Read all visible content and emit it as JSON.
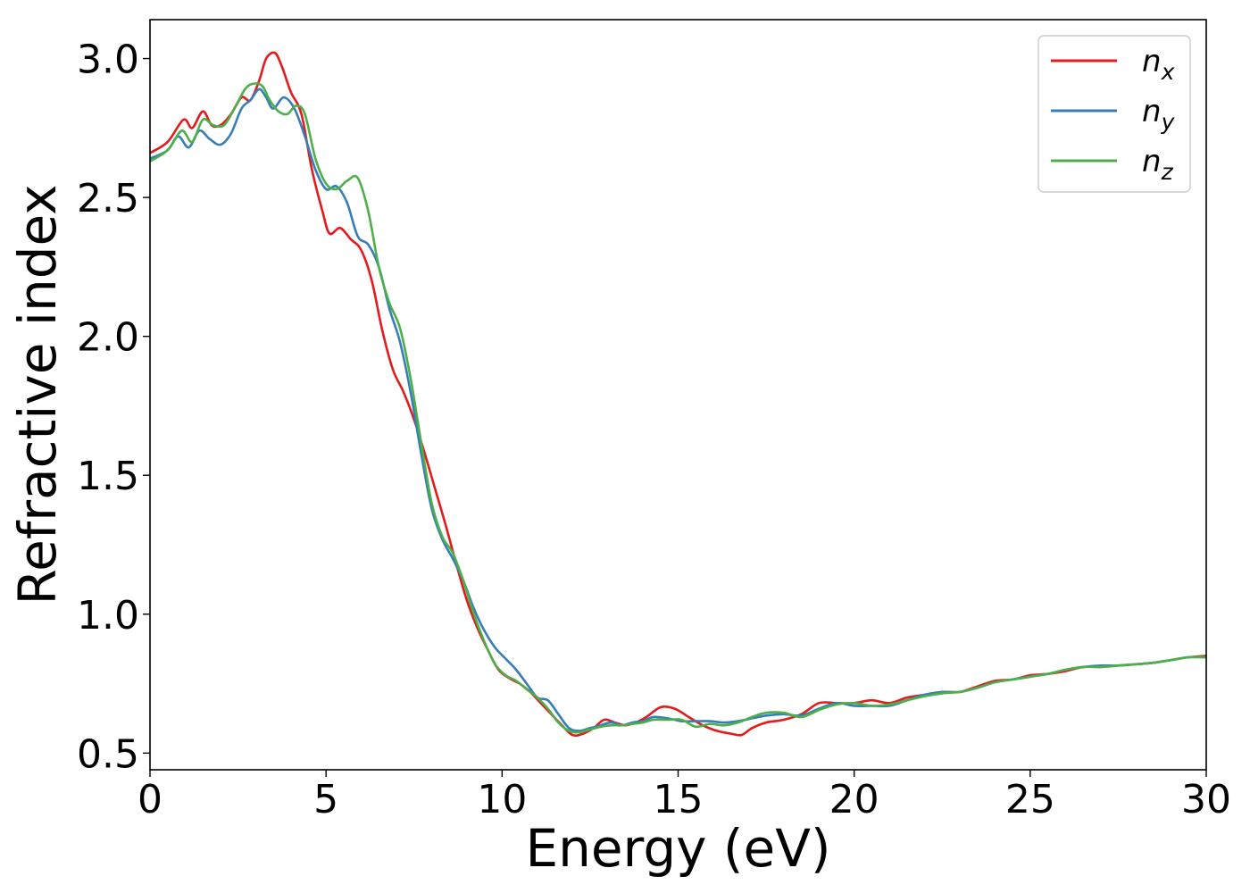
{
  "chart_data": {
    "type": "line",
    "xlabel": "Energy (eV)",
    "ylabel": "Refractive index",
    "xlim": [
      0,
      30
    ],
    "ylim": [
      0.44,
      3.14
    ],
    "xticks": [
      0,
      5,
      10,
      15,
      20,
      25,
      30
    ],
    "yticks": [
      0.5,
      1.0,
      1.5,
      2.0,
      2.5,
      3.0
    ],
    "xtick_labels": [
      "0",
      "5",
      "10",
      "15",
      "20",
      "25",
      "30"
    ],
    "ytick_labels": [
      "0.5",
      "1.0",
      "1.5",
      "2.0",
      "2.5",
      "3.0"
    ],
    "grid": false,
    "legend_position": "top-right",
    "series": [
      {
        "name": "n_x",
        "label_base": "n",
        "label_sub": "x",
        "color": "#e41a1c",
        "x": [
          0,
          0.5,
          0.95,
          1.2,
          1.5,
          1.75,
          2.0,
          2.3,
          2.6,
          2.85,
          3.1,
          3.3,
          3.55,
          3.75,
          4.0,
          4.3,
          4.6,
          4.9,
          5.1,
          5.4,
          5.7,
          6.0,
          6.3,
          6.6,
          6.9,
          7.2,
          7.5,
          7.8,
          8.1,
          8.4,
          8.7,
          9.0,
          9.3,
          9.6,
          9.9,
          10.2,
          10.5,
          10.8,
          11.1,
          11.4,
          11.7,
          12.0,
          12.3,
          12.6,
          12.9,
          13.2,
          13.5,
          13.8,
          14.1,
          14.5,
          14.9,
          15.3,
          15.7,
          16.1,
          16.5,
          16.8,
          17.1,
          17.5,
          18.0,
          18.5,
          19.0,
          19.5,
          20.0,
          20.5,
          21.0,
          21.5,
          22.0,
          22.5,
          23.0,
          23.5,
          24.0,
          24.5,
          25.0,
          25.5,
          26.0,
          26.5,
          27.0,
          27.5,
          28.0,
          28.5,
          29.0,
          29.5,
          30.0
        ],
        "values": [
          2.66,
          2.7,
          2.78,
          2.75,
          2.81,
          2.76,
          2.76,
          2.8,
          2.86,
          2.85,
          2.92,
          3.0,
          3.02,
          2.97,
          2.88,
          2.8,
          2.6,
          2.45,
          2.37,
          2.39,
          2.35,
          2.31,
          2.2,
          2.02,
          1.88,
          1.8,
          1.7,
          1.58,
          1.45,
          1.32,
          1.18,
          1.05,
          0.95,
          0.87,
          0.8,
          0.77,
          0.75,
          0.72,
          0.68,
          0.64,
          0.6,
          0.565,
          0.57,
          0.59,
          0.62,
          0.61,
          0.6,
          0.61,
          0.63,
          0.665,
          0.66,
          0.63,
          0.6,
          0.58,
          0.57,
          0.565,
          0.59,
          0.61,
          0.62,
          0.64,
          0.68,
          0.68,
          0.68,
          0.69,
          0.68,
          0.7,
          0.71,
          0.72,
          0.72,
          0.74,
          0.76,
          0.765,
          0.78,
          0.785,
          0.795,
          0.81,
          0.81,
          0.815,
          0.82,
          0.825,
          0.835,
          0.845,
          0.85
        ]
      },
      {
        "name": "n_y",
        "label_base": "n",
        "label_sub": "y",
        "color": "#377eb8",
        "x": [
          0,
          0.5,
          0.8,
          1.1,
          1.4,
          1.7,
          2.0,
          2.3,
          2.6,
          2.85,
          3.1,
          3.3,
          3.5,
          3.8,
          4.1,
          4.4,
          4.7,
          5.0,
          5.3,
          5.6,
          5.9,
          6.2,
          6.5,
          6.8,
          7.1,
          7.4,
          7.7,
          8.0,
          8.3,
          8.6,
          8.9,
          9.2,
          9.5,
          9.8,
          10.1,
          10.4,
          10.7,
          11.0,
          11.3,
          11.6,
          11.9,
          12.2,
          12.5,
          12.8,
          13.1,
          13.4,
          13.7,
          14.0,
          14.3,
          14.7,
          15.1,
          15.5,
          15.9,
          16.3,
          16.7,
          17.1,
          17.5,
          18.0,
          18.5,
          19.0,
          19.5,
          20.0,
          20.5,
          21.0,
          21.5,
          22.0,
          22.5,
          23.0,
          23.5,
          24.0,
          24.5,
          25.0,
          25.5,
          26.0,
          26.5,
          27.0,
          27.5,
          28.0,
          28.5,
          29.0,
          29.5,
          30.0
        ],
        "values": [
          2.64,
          2.67,
          2.72,
          2.68,
          2.74,
          2.71,
          2.69,
          2.73,
          2.82,
          2.85,
          2.89,
          2.86,
          2.82,
          2.86,
          2.82,
          2.72,
          2.6,
          2.53,
          2.54,
          2.48,
          2.36,
          2.33,
          2.25,
          2.1,
          1.98,
          1.8,
          1.58,
          1.38,
          1.27,
          1.2,
          1.12,
          1.02,
          0.94,
          0.88,
          0.84,
          0.8,
          0.75,
          0.7,
          0.69,
          0.64,
          0.59,
          0.58,
          0.59,
          0.6,
          0.61,
          0.6,
          0.61,
          0.615,
          0.63,
          0.625,
          0.615,
          0.615,
          0.615,
          0.61,
          0.615,
          0.625,
          0.635,
          0.64,
          0.635,
          0.66,
          0.68,
          0.67,
          0.67,
          0.67,
          0.69,
          0.71,
          0.72,
          0.72,
          0.735,
          0.755,
          0.765,
          0.775,
          0.785,
          0.8,
          0.81,
          0.815,
          0.815,
          0.82,
          0.825,
          0.835,
          0.845,
          0.845
        ]
      },
      {
        "name": "n_z",
        "label_base": "n",
        "label_sub": "z",
        "color": "#4daf4a",
        "x": [
          0,
          0.5,
          0.9,
          1.2,
          1.5,
          1.8,
          2.1,
          2.4,
          2.7,
          2.95,
          3.2,
          3.4,
          3.65,
          3.9,
          4.15,
          4.4,
          4.7,
          5.0,
          5.3,
          5.6,
          5.9,
          6.2,
          6.5,
          6.8,
          7.1,
          7.4,
          7.7,
          8.0,
          8.3,
          8.6,
          8.9,
          9.2,
          9.5,
          9.8,
          10.1,
          10.4,
          10.7,
          11.0,
          11.3,
          11.6,
          11.9,
          12.2,
          12.5,
          12.8,
          13.1,
          13.4,
          13.7,
          14.0,
          14.3,
          14.7,
          15.1,
          15.5,
          15.9,
          16.3,
          16.7,
          17.1,
          17.5,
          18.0,
          18.5,
          19.0,
          19.5,
          20.0,
          20.5,
          21.0,
          21.5,
          22.0,
          22.5,
          23.0,
          23.5,
          24.0,
          24.5,
          25.0,
          25.5,
          26.0,
          26.5,
          27.0,
          27.5,
          28.0,
          28.5,
          29.0,
          29.5,
          30.0
        ],
        "values": [
          2.63,
          2.67,
          2.74,
          2.7,
          2.78,
          2.76,
          2.76,
          2.82,
          2.89,
          2.91,
          2.9,
          2.85,
          2.81,
          2.8,
          2.83,
          2.8,
          2.64,
          2.55,
          2.53,
          2.56,
          2.57,
          2.45,
          2.25,
          2.12,
          2.03,
          1.85,
          1.62,
          1.4,
          1.28,
          1.22,
          1.12,
          1.0,
          0.9,
          0.82,
          0.78,
          0.76,
          0.73,
          0.7,
          0.66,
          0.61,
          0.58,
          0.575,
          0.585,
          0.595,
          0.6,
          0.6,
          0.605,
          0.61,
          0.62,
          0.62,
          0.62,
          0.595,
          0.605,
          0.6,
          0.61,
          0.63,
          0.645,
          0.645,
          0.63,
          0.655,
          0.675,
          0.68,
          0.67,
          0.675,
          0.69,
          0.705,
          0.715,
          0.72,
          0.735,
          0.755,
          0.765,
          0.775,
          0.785,
          0.8,
          0.81,
          0.81,
          0.815,
          0.82,
          0.825,
          0.835,
          0.845,
          0.845
        ]
      }
    ]
  }
}
